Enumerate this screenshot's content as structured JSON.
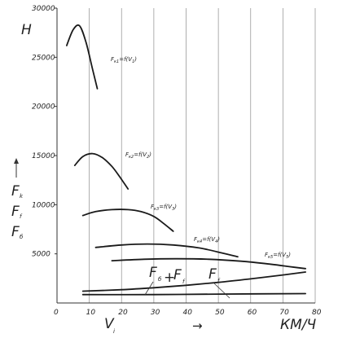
{
  "chart_data": {
    "type": "line",
    "ylabel": "H",
    "ylabel_left_stack": [
      "F",
      "k",
      "F",
      "f",
      "F",
      "б"
    ],
    "xlabel_var": "V",
    "xlabel_sub": "i",
    "xunit": "КМ/Ч",
    "xlim": [
      0,
      80
    ],
    "ylim": [
      0,
      30000
    ],
    "x_ticks": [
      0,
      10,
      20,
      30,
      40,
      50,
      60,
      70,
      80
    ],
    "y_ticks": [
      5000,
      10000,
      15000,
      20000,
      25000,
      30000
    ],
    "grid": true,
    "series": [
      {
        "name": "Fк1=f(V1)",
        "points": [
          [
            3,
            26200
          ],
          [
            5,
            27800
          ],
          [
            7,
            28200
          ],
          [
            9,
            26500
          ],
          [
            11,
            23800
          ],
          [
            12.5,
            21800
          ]
        ]
      },
      {
        "name": "Fк2=f(V2)",
        "points": [
          [
            5.5,
            14000
          ],
          [
            8,
            14900
          ],
          [
            11,
            15200
          ],
          [
            14,
            14800
          ],
          [
            17,
            13900
          ],
          [
            19.5,
            12800
          ],
          [
            22,
            11600
          ]
        ]
      },
      {
        "name": "Fк3=f(V3)",
        "points": [
          [
            8,
            8900
          ],
          [
            12,
            9300
          ],
          [
            17,
            9500
          ],
          [
            22,
            9500
          ],
          [
            26,
            9300
          ],
          [
            30,
            8800
          ],
          [
            33,
            8100
          ],
          [
            36,
            7300
          ]
        ]
      },
      {
        "name": "Fк4=f(V4)",
        "points": [
          [
            12,
            5650
          ],
          [
            20,
            5900
          ],
          [
            28,
            6000
          ],
          [
            36,
            5900
          ],
          [
            44,
            5600
          ],
          [
            51,
            5100
          ],
          [
            56,
            4700
          ]
        ]
      },
      {
        "name": "Fк5=f(V5)",
        "points": [
          [
            17,
            4300
          ],
          [
            27,
            4450
          ],
          [
            37,
            4500
          ],
          [
            47,
            4450
          ],
          [
            57,
            4250
          ],
          [
            66,
            3950
          ],
          [
            72,
            3700
          ],
          [
            77,
            3500
          ]
        ]
      },
      {
        "name": "Fб+Ff",
        "points": [
          [
            8,
            1200
          ],
          [
            20,
            1350
          ],
          [
            30,
            1550
          ],
          [
            40,
            1800
          ],
          [
            50,
            2100
          ],
          [
            60,
            2450
          ],
          [
            70,
            2850
          ],
          [
            77,
            3150
          ]
        ]
      },
      {
        "name": "Ff",
        "points": [
          [
            8,
            850
          ],
          [
            30,
            850
          ],
          [
            50,
            900
          ],
          [
            77,
            950
          ]
        ]
      }
    ],
    "annotations": {
      "curve_labels": [
        {
          "F": "F",
          "sub": "к1",
          "rest": "=f(V",
          "vsub": "1",
          "end": ")"
        },
        {
          "F": "F",
          "sub": "к2",
          "rest": "=f(V",
          "vsub": "2",
          "end": ")"
        },
        {
          "F": "F",
          "sub": "к3",
          "rest": "=f(V",
          "vsub": "3",
          "end": ")"
        },
        {
          "F": "F",
          "sub": "к4",
          "rest": "=f(V",
          "vsub": "4",
          "end": ")"
        },
        {
          "F": "F",
          "sub": "к5",
          "rest": "=f(V",
          "vsub": "5",
          "end": ")"
        }
      ],
      "resistance_label_F1": "F",
      "resistance_label_sub1": "б",
      "resistance_label_plus": "+",
      "resistance_label_F2": "F",
      "resistance_label_sub2": "f",
      "resistance_label_ff": "F",
      "resistance_label_ff_sub": "f",
      "arrow_right": "→"
    }
  }
}
